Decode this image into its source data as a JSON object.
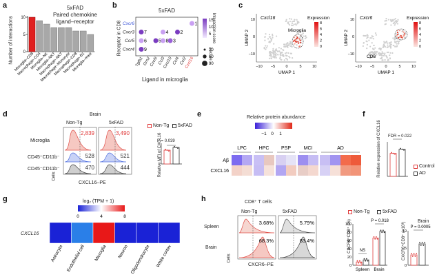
{
  "panels": {
    "a": {
      "label": "a",
      "title_line1": "5xFAD",
      "title_line2": "Paired chemokine",
      "title_line3": "ligand–receptor",
      "ylabel": "Number of interactions",
      "yticks": [
        "0",
        "5",
        "10"
      ]
    },
    "b": {
      "label": "b",
      "title": "5xFAD",
      "ylabel": "Receptor in CD8",
      "xlabel": "Ligand in microglia",
      "rows": [
        "Cxcr6",
        "Cxcr3",
        "Ccr5",
        "Cxcr4"
      ],
      "cols": [
        "Tgfb1",
        "Grn2",
        "Cxcl9",
        "Ccl3",
        "Cxcl10",
        "Ccl4",
        "Ccl2",
        "Cxcl16"
      ],
      "dots": [
        {
          "row": 0,
          "col": 7,
          "text": "1",
          "color": "#c9a0f2"
        },
        {
          "row": 1,
          "col": 0,
          "text": "7",
          "color": "#7a3cc0"
        },
        {
          "row": 1,
          "col": 3,
          "text": "4",
          "color": "#c9a0f2"
        },
        {
          "row": 1,
          "col": 5,
          "text": "2",
          "color": "#7a3cc0"
        },
        {
          "row": 2,
          "col": 0,
          "text": "6",
          "color": "#c9a0f2"
        },
        {
          "row": 2,
          "col": 2,
          "text": "5",
          "color": "#7a3cc0"
        },
        {
          "row": 2,
          "col": 3,
          "text": "8",
          "color": "#c9a0f2"
        },
        {
          "row": 2,
          "col": 4,
          "text": "3",
          "color": "#9a60d8"
        },
        {
          "row": 3,
          "col": 0,
          "text": "9",
          "color": "#7a3cc0"
        }
      ],
      "score_label": "Interaction score",
      "score_ticks": [
        "15",
        "10",
        "5"
      ],
      "zscore_label": "z score",
      "zscore_values": [
        "30",
        "60",
        "90"
      ]
    },
    "c": {
      "label": "c",
      "umap1": {
        "gene": "Cxcl16",
        "annotation": "Microglia",
        "legend": "Expression",
        "ticks": [
          "8",
          "6",
          "4",
          "2",
          "0"
        ]
      },
      "umap2": {
        "gene": "Cxcr6",
        "annotation": "CD8",
        "legend": "Expression",
        "ticks": [
          "8",
          "6",
          "4",
          "2",
          "0"
        ]
      },
      "xlabel": "UMAP 1",
      "ylabel": "UMAP 2",
      "xticks": [
        "−10",
        "−5",
        "0",
        "5",
        "10"
      ],
      "yticks": [
        "10",
        "0",
        "−10"
      ]
    },
    "d": {
      "label": "d",
      "header": "Brain",
      "col1": "Non-Tg",
      "col2": "5xFAD",
      "rows": [
        "Microglia",
        "CD45⁺CD11b⁻",
        "CD45⁻CD11b⁻"
      ],
      "values_nontg": [
        "2,839",
        "528",
        "470"
      ],
      "values_5xfad": [
        "3,490",
        "521",
        "444"
      ],
      "xlabel": "CXCL16–PE",
      "ylabel": "Cells",
      "legend_nontg": "Non-Tg",
      "legend_5xfad": "5xFAD",
      "bar_ylabel": "Relative MFI of CXCL16",
      "pvalue": "P = 0.039",
      "bar_values": [
        1.0,
        1.2
      ]
    },
    "e": {
      "label": "e",
      "title": "Relative protein abundance",
      "scale_ticks": [
        "−1",
        "0",
        "1"
      ],
      "groups": [
        "LPC",
        "HPC",
        "PSP",
        "MCI",
        "AD"
      ],
      "rows": [
        "Aβ",
        "CXCL16"
      ],
      "heat": [
        [
          "#7d6cf0",
          "#b4a8f3",
          "#c9c0f5",
          "#e8c8c0",
          "#d8d0f2",
          "#e5e3f6",
          "#9d8ff0",
          "#c6bdf4",
          "#c8bff4",
          "#a294f0",
          "#f36b4b",
          "#ee5a3a"
        ],
        [
          "#f3d2c8",
          "#f4ddd4",
          "#c6bdf4",
          "#f6e2da",
          "#b2a6f2",
          "#f2ccc0",
          "#e8cdc6",
          "#f4d8cf",
          "#d7d1f5",
          "#f6e0d8",
          "#f19a80",
          "#f29478"
        ]
      ]
    },
    "f": {
      "label": "f",
      "ylabel": "Relative expression of CXCL16",
      "fdr": "FDR = 0.022",
      "legend_control": "Control",
      "legend_ad": "AD",
      "bar_values": [
        1.0,
        1.18
      ]
    },
    "g": {
      "label": "g",
      "scale_title": "log₂ (TPM + 1)",
      "scale_ticks": [
        "0",
        "4",
        "8"
      ],
      "row_label": "CXCL16",
      "cells": [
        "Astrocyte",
        "Endothelial cell",
        "Microglia",
        "Neuron",
        "Oligodendrocyte",
        "White cortex"
      ],
      "colors": [
        "#1a22d6",
        "#2a7fe8",
        "#e81818",
        "#1a22d6",
        "#1a22d6",
        "#1a22d6"
      ]
    },
    "h": {
      "label": "h",
      "header": "CD8⁺ T cells",
      "col1": "Non-Tg",
      "col2": "5xFAD",
      "rows": [
        "Spleen",
        "Brain"
      ],
      "pct_nontg": [
        "3.68%",
        "68.3%"
      ],
      "pct_5xfad": [
        "5.79%",
        "83.4%"
      ],
      "xlabel": "CXCR6–PE",
      "ylabel": "Cells",
      "legend_nontg": "Non-Tg",
      "legend_5xfad": "5xFAD",
      "bar1_ylabel": "CXCR6⁺CD8⁺ (%)",
      "bar1_yticks": [
        "100",
        "80",
        "60",
        "40",
        "20",
        "0"
      ],
      "bar1_ns": "NS",
      "bar1_p": "P = 0.018",
      "bar1_groups": [
        "Spleen",
        "Brain"
      ],
      "bar2_title": "Brain",
      "bar2_ylabel": "CXCR6⁺CD8⁺ (×10³)",
      "bar2_yticks": [
        "10",
        "5",
        "0"
      ],
      "bar2_p": "P = 0.0005"
    }
  },
  "chart_data": {
    "type": "bar",
    "title": "5xFAD Paired chemokine ligand–receptor",
    "ylabel": "Number of interactions",
    "categories": [
      "Microglia–CD8",
      "Macrophage–CD4",
      "Microglia–NK",
      "Microglia–NKT",
      "Macrophage–NKT",
      "Macrophage–Monocyte",
      "Macrophage–CD8",
      "Macrophage–B1",
      "Microglia–mast"
    ],
    "values": [
      10,
      9,
      8,
      7,
      7,
      7,
      6,
      6,
      5
    ],
    "ylim": [
      0,
      10
    ],
    "highlight_color": "#e02020",
    "bar_color": "#a8a8a8"
  }
}
